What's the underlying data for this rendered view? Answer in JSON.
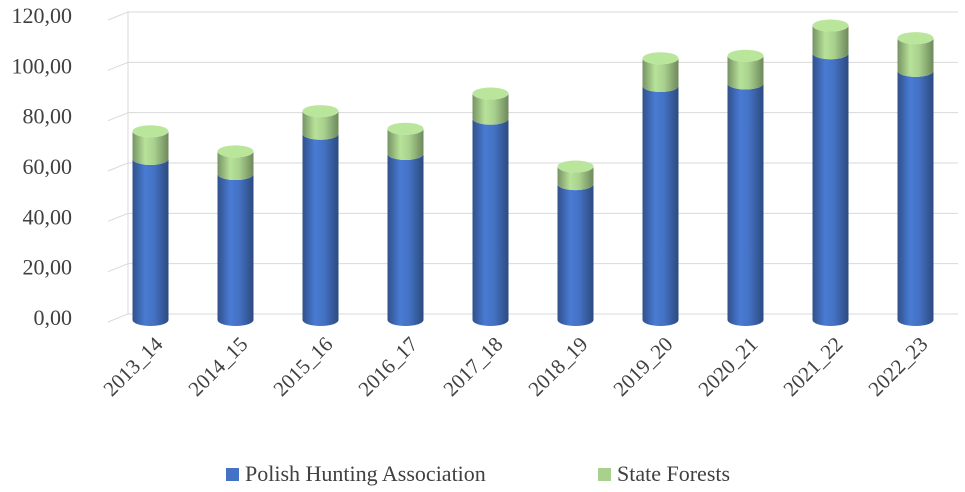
{
  "chart_data": {
    "type": "stacked-bar",
    "categories": [
      "2013_14",
      "2014_15",
      "2015_16",
      "2016_17",
      "2017_18",
      "2018_19",
      "2019_20",
      "2020_21",
      "2021_22",
      "2022_23"
    ],
    "series": [
      {
        "name": "Polish Hunting Association",
        "color": "#4472c4",
        "values": [
          64,
          58,
          74,
          66,
          80,
          54,
          93,
          94,
          106,
          99
        ]
      },
      {
        "name": "State Forests",
        "color": "#a9d18e",
        "values": [
          11,
          9,
          9,
          10,
          10,
          7,
          11,
          11,
          11,
          13
        ]
      }
    ],
    "ylim": [
      0,
      120
    ],
    "yticks": [
      {
        "value": 0,
        "label": "0,00"
      },
      {
        "value": 20,
        "label": "20,00"
      },
      {
        "value": 40,
        "label": "40,00"
      },
      {
        "value": 60,
        "label": "60,00"
      },
      {
        "value": 80,
        "label": "80,00"
      },
      {
        "value": 100,
        "label": "100,00"
      },
      {
        "value": 120,
        "label": "120,00"
      }
    ],
    "grid": true,
    "legend": "bottom"
  }
}
